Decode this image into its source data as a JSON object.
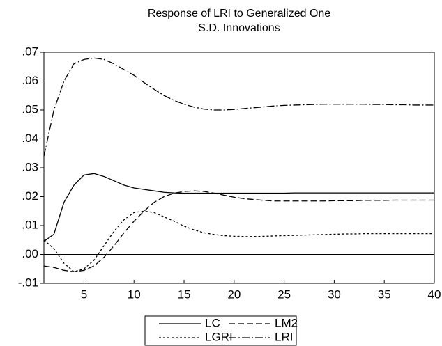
{
  "chart_data": {
    "type": "line",
    "title": [
      "Response of LRI to Generalized One",
      "S.D. Innovations"
    ],
    "x": [
      1,
      2,
      3,
      4,
      5,
      6,
      7,
      8,
      9,
      10,
      11,
      12,
      13,
      14,
      15,
      16,
      17,
      18,
      19,
      20,
      21,
      22,
      23,
      24,
      25,
      26,
      27,
      28,
      29,
      30,
      31,
      32,
      33,
      34,
      35,
      36,
      37,
      38,
      39,
      40
    ],
    "xlim": [
      1,
      40
    ],
    "xticks": [
      5,
      10,
      15,
      20,
      25,
      30,
      35,
      40
    ],
    "ylim": [
      -0.01,
      0.07
    ],
    "yticks": [
      {
        "value": -0.01,
        "label": "-.01"
      },
      {
        "value": 0,
        "label": ".00"
      },
      {
        "value": 0.01,
        "label": ".01"
      },
      {
        "value": 0.02,
        "label": ".02"
      },
      {
        "value": 0.03,
        "label": ".03"
      },
      {
        "value": 0.04,
        "label": ".04"
      },
      {
        "value": 0.05,
        "label": ".05"
      },
      {
        "value": 0.06,
        "label": ".06"
      },
      {
        "value": 0.07,
        "label": ".07"
      }
    ],
    "zero_line": true,
    "series": [
      {
        "name": "LC",
        "color": "#000000",
        "dash": "none",
        "values": [
          0.0045,
          0.007,
          0.018,
          0.024,
          0.0275,
          0.028,
          0.027,
          0.0255,
          0.024,
          0.023,
          0.0225,
          0.022,
          0.0215,
          0.0213,
          0.0212,
          0.0212,
          0.0212,
          0.0212,
          0.0212,
          0.0212,
          0.0212,
          0.0212,
          0.0212,
          0.0212,
          0.0212,
          0.0213,
          0.0213,
          0.0213,
          0.0213,
          0.0213,
          0.0213,
          0.0213,
          0.0213,
          0.0213,
          0.0213,
          0.0213,
          0.0213,
          0.0213,
          0.0213,
          0.0213
        ]
      },
      {
        "name": "LM2",
        "color": "#000000",
        "dash": "9,4",
        "values": [
          -0.004,
          -0.0045,
          -0.0055,
          -0.006,
          -0.0055,
          -0.004,
          -0.001,
          0.003,
          0.0075,
          0.0115,
          0.015,
          0.018,
          0.02,
          0.0212,
          0.0218,
          0.022,
          0.0218,
          0.0212,
          0.0205,
          0.0198,
          0.0193,
          0.019,
          0.0187,
          0.0185,
          0.0185,
          0.0185,
          0.0185,
          0.0185,
          0.0185,
          0.0186,
          0.0186,
          0.0186,
          0.0187,
          0.0187,
          0.0187,
          0.0188,
          0.0188,
          0.0188,
          0.0188,
          0.0188
        ]
      },
      {
        "name": "LGRI",
        "color": "#000000",
        "dash": "3,3",
        "values": [
          0.005,
          0.002,
          -0.003,
          -0.006,
          -0.005,
          -0.002,
          0.003,
          0.008,
          0.012,
          0.0145,
          0.015,
          0.0145,
          0.013,
          0.0115,
          0.0098,
          0.0085,
          0.0075,
          0.0069,
          0.0065,
          0.0063,
          0.0062,
          0.0062,
          0.0063,
          0.0064,
          0.0065,
          0.0066,
          0.0067,
          0.0068,
          0.0069,
          0.007,
          0.0071,
          0.0071,
          0.0072,
          0.0072,
          0.0072,
          0.0072,
          0.0072,
          0.0072,
          0.0072,
          0.0072
        ]
      },
      {
        "name": "LRI",
        "color": "#000000",
        "dash": "11,3,2,3",
        "values": [
          0.034,
          0.05,
          0.06,
          0.066,
          0.0675,
          0.068,
          0.0675,
          0.066,
          0.064,
          0.062,
          0.0595,
          0.0572,
          0.055,
          0.0533,
          0.052,
          0.051,
          0.0503,
          0.05,
          0.05,
          0.0502,
          0.0505,
          0.0508,
          0.0511,
          0.0514,
          0.0516,
          0.0517,
          0.0518,
          0.0519,
          0.052,
          0.052,
          0.052,
          0.052,
          0.052,
          0.0519,
          0.0519,
          0.0518,
          0.0518,
          0.0517,
          0.0517,
          0.0517
        ]
      }
    ]
  }
}
